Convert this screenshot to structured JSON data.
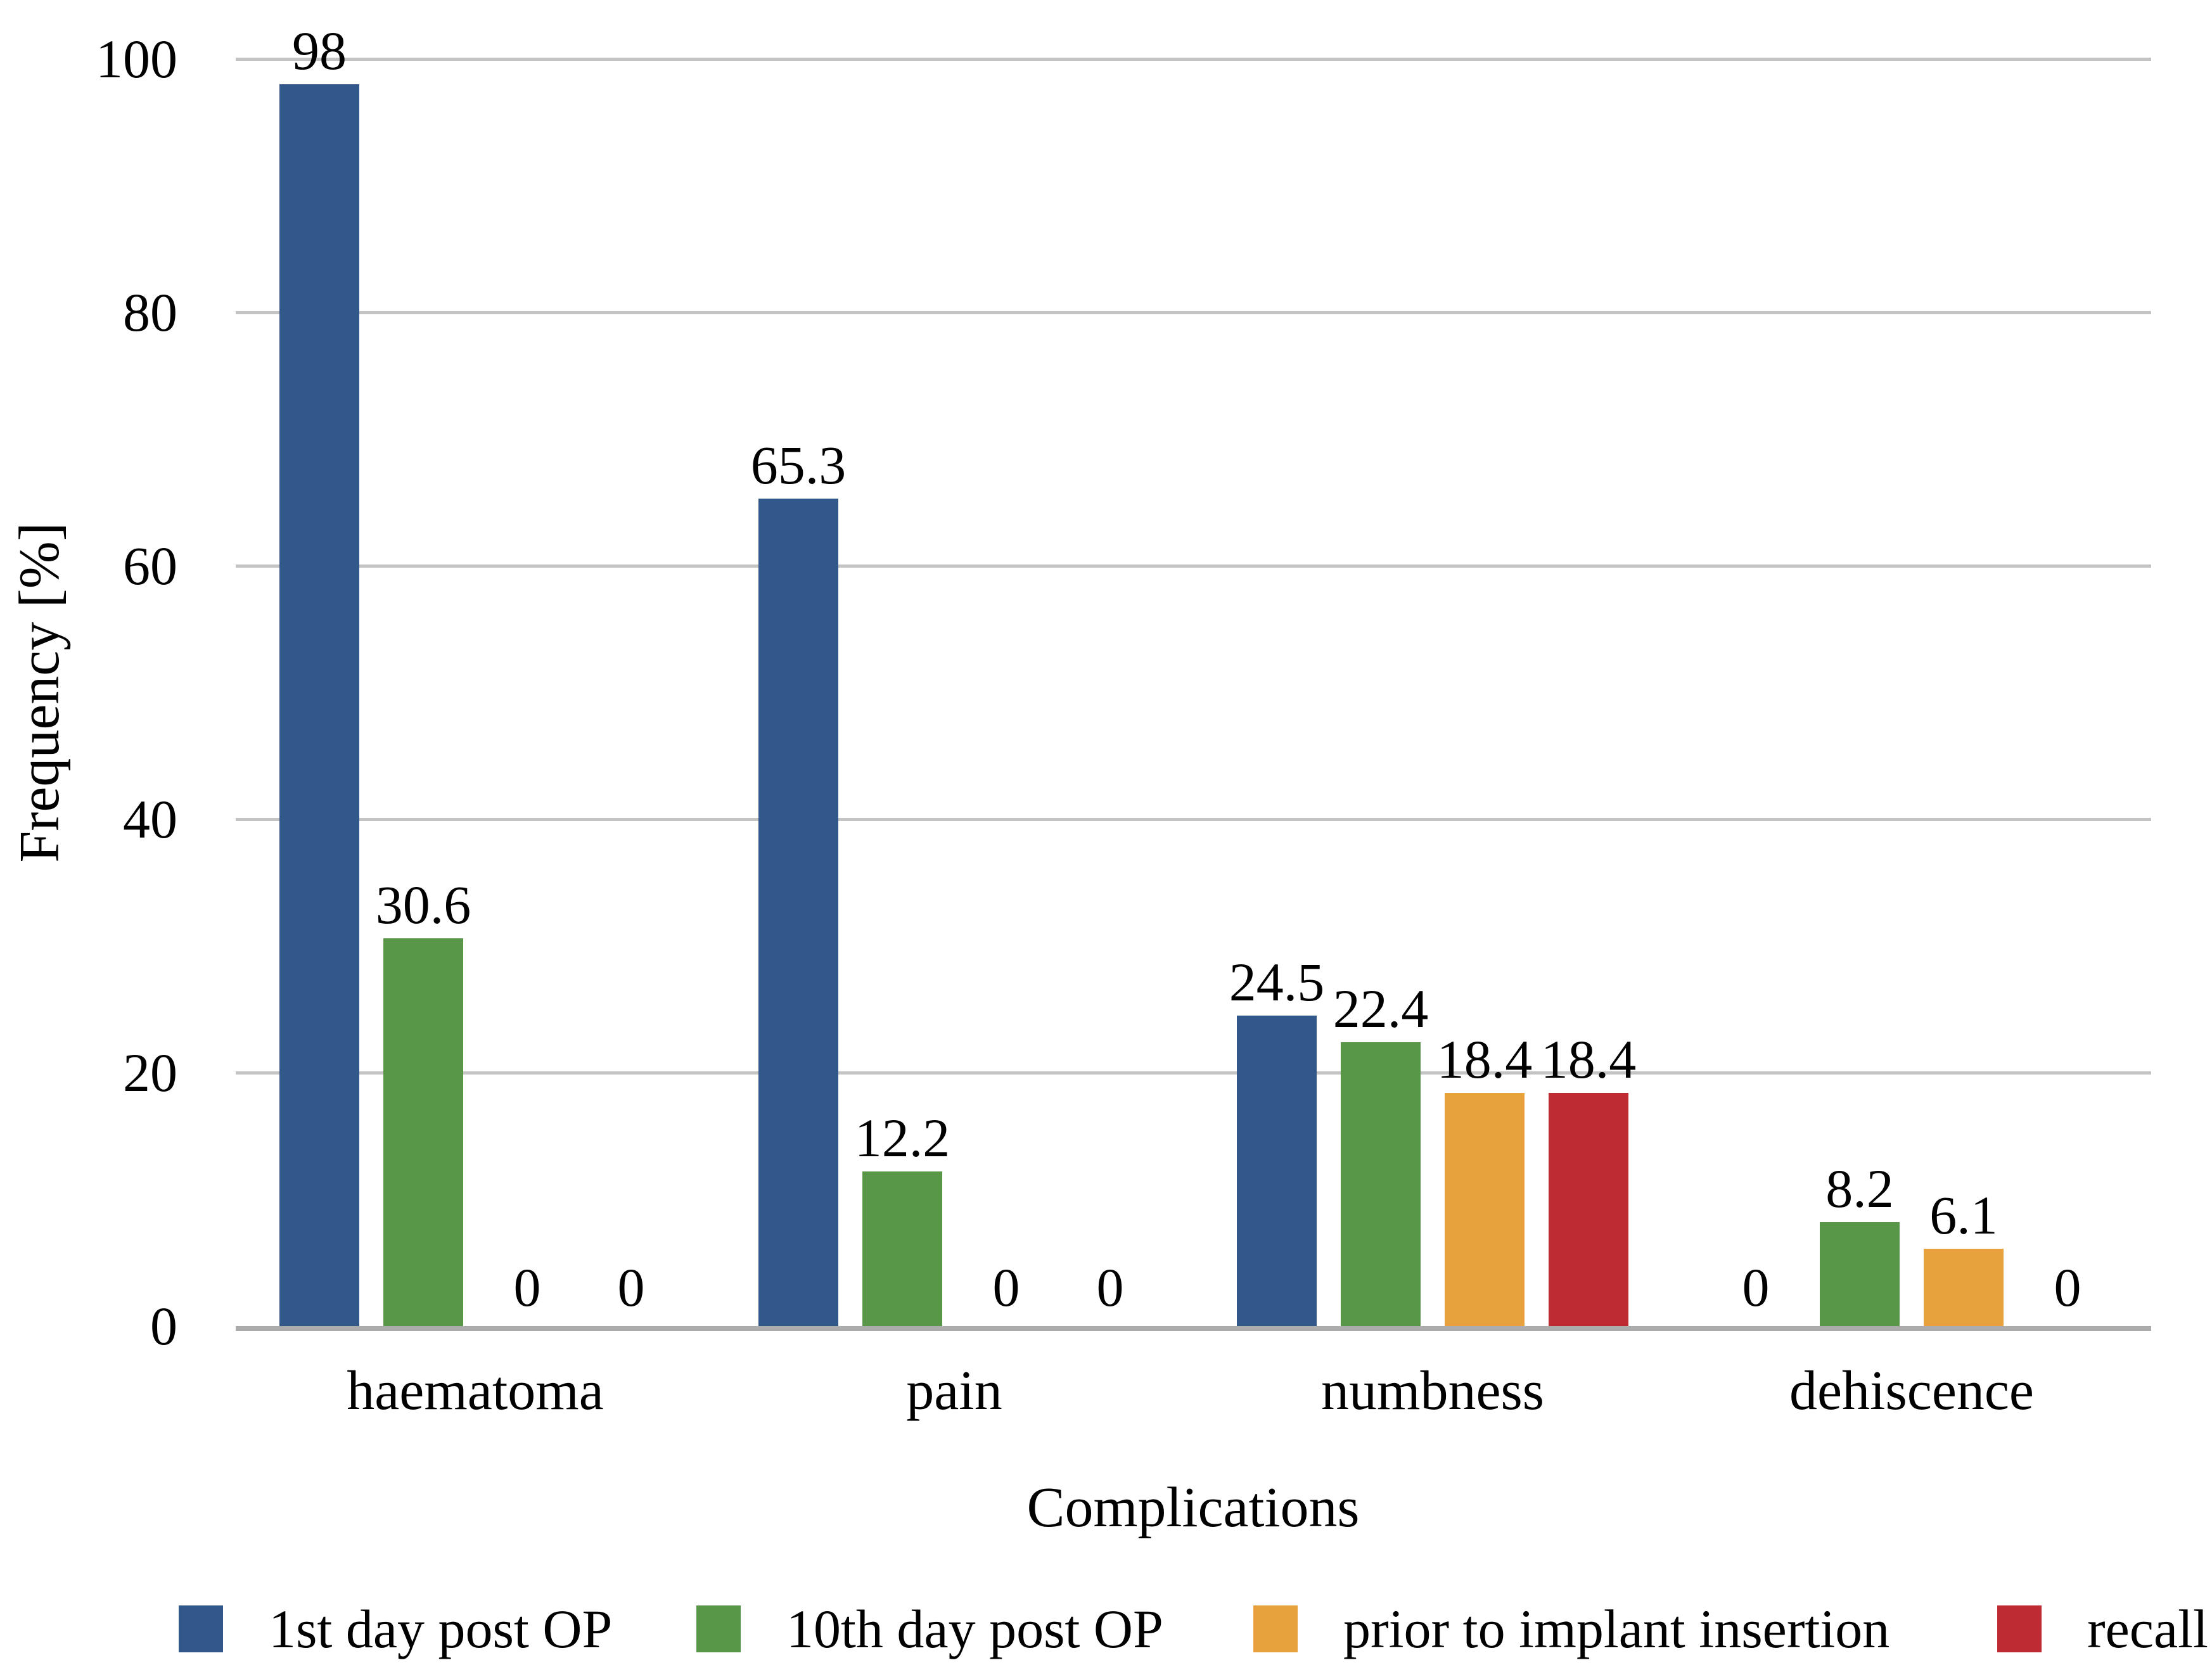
{
  "figure": {
    "background": "#ffffff"
  },
  "chart_data": {
    "type": "bar",
    "title": "",
    "xlabel": "Complications",
    "ylabel": "Frequency [%]",
    "categories": [
      "haematoma",
      "pain",
      "numbness",
      "dehiscence"
    ],
    "series": [
      {
        "name": "1st day post OP",
        "color": "#315889",
        "values": [
          98,
          65.3,
          24.5,
          0
        ],
        "labels": [
          "98",
          "65.3",
          "24.5",
          "0"
        ]
      },
      {
        "name": "10th day post OP",
        "color": "#589648",
        "values": [
          30.6,
          12.2,
          22.4,
          8.2
        ],
        "labels": [
          "30.6",
          "12.2",
          "22.4",
          "8.2"
        ]
      },
      {
        "name": "prior to implant insertion",
        "color": "#E8A23D",
        "values": [
          0,
          0,
          18.4,
          6.1
        ],
        "labels": [
          "0",
          "0",
          "18.4",
          "6.1"
        ]
      },
      {
        "name": "recall",
        "color": "#BE2B32",
        "values": [
          0,
          0,
          18.4,
          0
        ],
        "labels": [
          "0",
          "0",
          "18.4",
          "0"
        ]
      }
    ],
    "ylim": [
      0,
      100
    ],
    "yticks": [
      0,
      20,
      40,
      60,
      80,
      100
    ],
    "grid": true,
    "gridline_color": "#C3C3C3",
    "baseline_color": "#ACACAC",
    "text_color": "#000000",
    "legend_position": "bottom"
  }
}
